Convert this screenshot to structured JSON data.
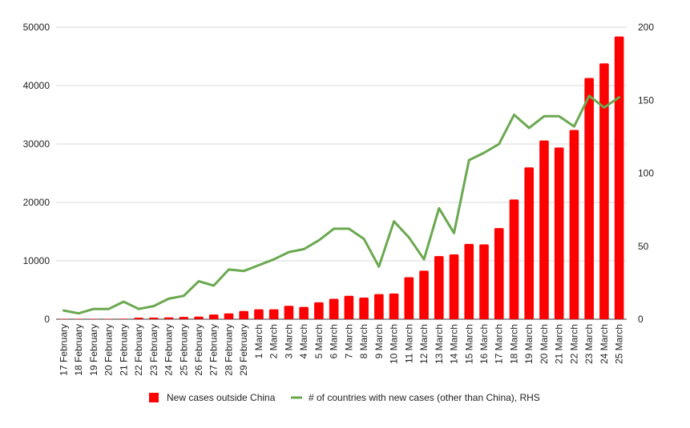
{
  "chart_data": {
    "type": "bar",
    "title": "",
    "xlabel": "",
    "ylabel": "",
    "y2label": "",
    "ylim": [
      0,
      50000
    ],
    "y2lim": [
      0,
      200
    ],
    "yticks": [
      0,
      10000,
      20000,
      30000,
      40000,
      50000
    ],
    "y2ticks": [
      0,
      50,
      100,
      150,
      200
    ],
    "grid": true,
    "legend_position": "bottom",
    "categories": [
      "17 February",
      "18 February",
      "19 February",
      "20 February",
      "21 February",
      "22 February",
      "23 February",
      "24 February",
      "25 February",
      "26 February",
      "27 February",
      "28 February",
      "29 February",
      "1 March",
      "2 March",
      "3 March",
      "4 March",
      "5 March",
      "6 March",
      "7 March",
      "8 March",
      "9 March",
      "10 March",
      "11 March",
      "12 March",
      "13 March",
      "14 March",
      "15 March",
      "16 March",
      "17 March",
      "18 March",
      "19 March",
      "20 March",
      "21 March",
      "22 March",
      "23 March",
      "24 March",
      "25 March"
    ],
    "series": [
      {
        "name": "New cases outside China",
        "type": "bar",
        "axis": "left",
        "color": "#ff0000",
        "values": [
          40,
          50,
          50,
          60,
          80,
          250,
          280,
          300,
          400,
          450,
          800,
          1000,
          1400,
          1700,
          1700,
          2300,
          2100,
          2900,
          3500,
          4000,
          3700,
          4300,
          4400,
          7200,
          8300,
          10800,
          11100,
          12900,
          12800,
          15600,
          20500,
          26000,
          30600,
          29400,
          32400,
          41300,
          43800,
          48400
        ]
      },
      {
        "name": "# of countries with new cases (other than China), RHS",
        "type": "line",
        "axis": "right",
        "color": "#6aa84f",
        "values": [
          6,
          4,
          7,
          7,
          12,
          7,
          9,
          14,
          16,
          26,
          23,
          34,
          33,
          37,
          41,
          46,
          48,
          54,
          62,
          62,
          55,
          36,
          67,
          56,
          41,
          76,
          59,
          109,
          114,
          120,
          140,
          131,
          139,
          139,
          132,
          153,
          145,
          152
        ]
      }
    ]
  }
}
